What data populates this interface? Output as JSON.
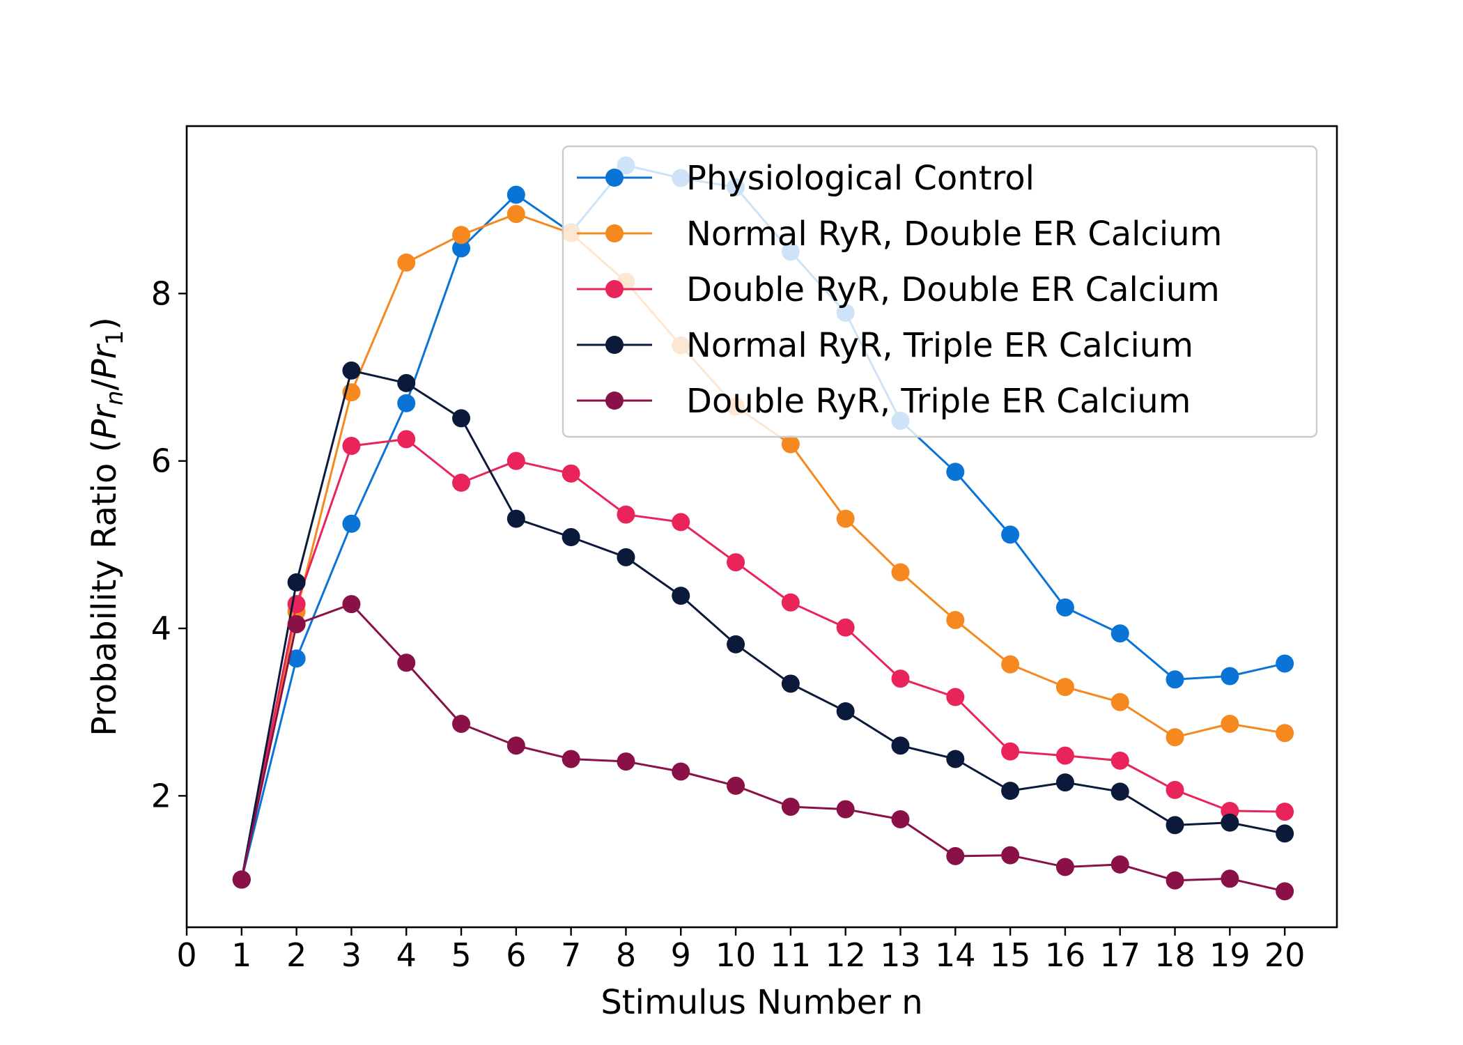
{
  "chart_data": {
    "type": "line",
    "xlabel": "Stimulus Number n",
    "ylabel": {
      "prefix": "Probability Ratio (",
      "num_base": "Pr",
      "num_sub": "n",
      "slash": "/",
      "den_base": "Pr",
      "den_sub": "1",
      "suffix": ")"
    },
    "xlim": [
      0,
      20.95
    ],
    "ylim": [
      0.43,
      10.0
    ],
    "xticks": [
      0,
      1,
      2,
      3,
      4,
      5,
      6,
      7,
      8,
      9,
      10,
      11,
      12,
      13,
      14,
      15,
      16,
      17,
      18,
      19,
      20
    ],
    "yticks": [
      2,
      4,
      6,
      8
    ],
    "grid": false,
    "legend_position": "top-right",
    "x": [
      1,
      2,
      3,
      4,
      5,
      6,
      7,
      8,
      9,
      10,
      11,
      12,
      13,
      14,
      15,
      16,
      17,
      18,
      19,
      20
    ],
    "series": [
      {
        "name": "Physiological Control",
        "color": "#0a74d6",
        "values": [
          1.0,
          3.64,
          5.25,
          6.69,
          8.54,
          9.18,
          8.73,
          9.53,
          9.38,
          9.27,
          8.5,
          7.77,
          6.48,
          5.87,
          5.12,
          4.25,
          3.94,
          3.39,
          3.43,
          3.58
        ]
      },
      {
        "name": "Normal RyR, Double ER Calcium",
        "color": "#f5891f",
        "values": [
          1.0,
          4.2,
          6.82,
          8.37,
          8.7,
          8.95,
          8.72,
          8.14,
          7.38,
          6.65,
          6.2,
          5.31,
          4.67,
          4.1,
          3.57,
          3.3,
          3.12,
          2.7,
          2.86,
          2.75
        ]
      },
      {
        "name": "Double RyR, Double ER Calcium",
        "color": "#e8245a",
        "values": [
          1.0,
          4.29,
          6.18,
          6.26,
          5.74,
          6.0,
          5.85,
          5.36,
          5.27,
          4.79,
          4.31,
          4.01,
          3.4,
          3.18,
          2.53,
          2.48,
          2.42,
          2.07,
          1.82,
          1.81
        ]
      },
      {
        "name": "Normal RyR, Triple ER Calcium",
        "color": "#0b1a3a",
        "values": [
          1.0,
          4.55,
          7.08,
          6.93,
          6.51,
          5.31,
          5.09,
          4.85,
          4.39,
          3.81,
          3.34,
          3.01,
          2.6,
          2.44,
          2.06,
          2.16,
          2.05,
          1.65,
          1.68,
          1.55
        ]
      },
      {
        "name": "Double RyR, Triple ER Calcium",
        "color": "#8a1148",
        "values": [
          1.0,
          4.05,
          4.29,
          3.59,
          2.86,
          2.6,
          2.44,
          2.41,
          2.29,
          2.12,
          1.87,
          1.84,
          1.72,
          1.28,
          1.29,
          1.15,
          1.18,
          0.99,
          1.01,
          0.86
        ]
      }
    ]
  }
}
